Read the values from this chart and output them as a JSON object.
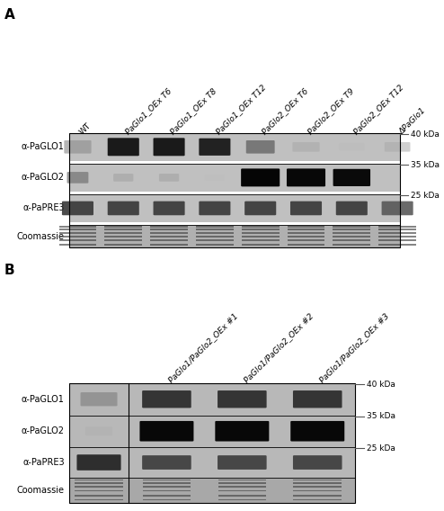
{
  "panel_A": {
    "label": "A",
    "col_labels": [
      "WT",
      "PaGlo1_OEx T6",
      "PaGlo1_OEx T8",
      "PaGlo1_OEx T12",
      "PaGlo2_OEx T6",
      "PaGlo2_OEx T9",
      "PaGlo2_OEx T12",
      "ΔPaGlo1"
    ],
    "row_labels": [
      "α-PaGLO1",
      "α-PaGLO2",
      "α-PaPRE3",
      "Coomassie"
    ],
    "kda_labels": [
      "40 kDa",
      "35 kDa",
      "25 kDa"
    ]
  },
  "panel_B": {
    "label": "B",
    "col_labels": [
      "PaGlo1/PaGlo2_OEx #1",
      "PaGlo1/PaGlo2_OEx #2",
      "PaGlo1/PaGlo2_OEx #3"
    ],
    "row_labels": [
      "α-PaGLO1",
      "α-PaGLO2",
      "α-PaPRE3",
      "Coomassie"
    ],
    "kda_labels": [
      "40 kDa",
      "35 kDa",
      "25 kDa"
    ]
  },
  "fig_bg": "#ffffff",
  "text_color": "#000000"
}
